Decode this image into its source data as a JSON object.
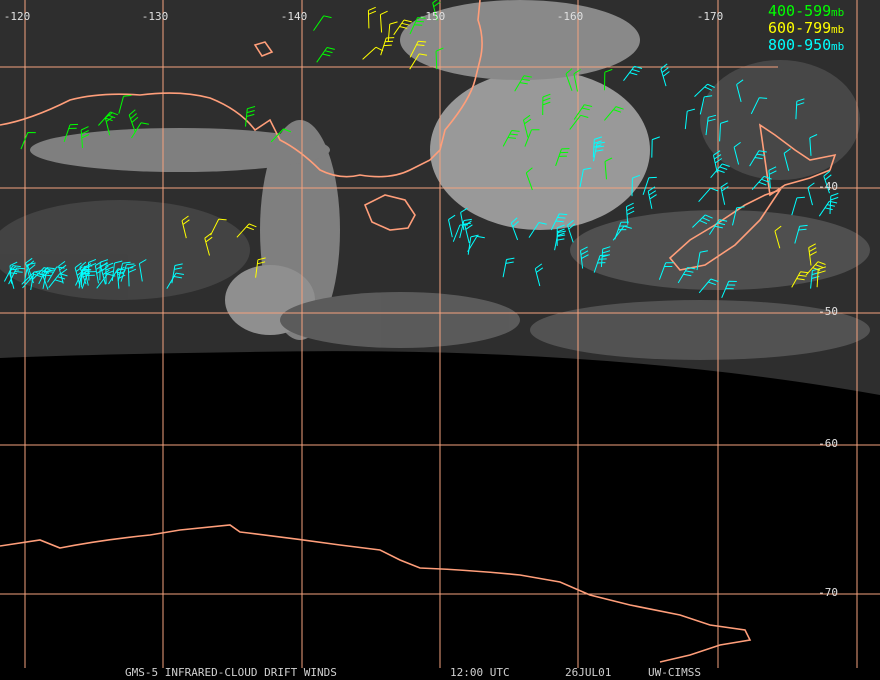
{
  "map": {
    "longitude_labels": [
      "-120",
      "-130",
      "-140",
      "-150",
      "-160",
      "-170"
    ],
    "latitude_labels": [
      "-40",
      "-50",
      "-60",
      "-70"
    ],
    "legend": [
      {
        "range": "400-599",
        "unit": "mb",
        "color": "#00ff00"
      },
      {
        "range": "600-799",
        "unit": "mb",
        "color": "#ffff00"
      },
      {
        "range": "800-950",
        "unit": "mb",
        "color": "#00ffff"
      }
    ],
    "footer": [
      "GMS-5 INFRARED-CLOUD DRIFT WINDS",
      "12:00 UTC",
      "26JUL01",
      "UW-CIMSS"
    ]
  }
}
